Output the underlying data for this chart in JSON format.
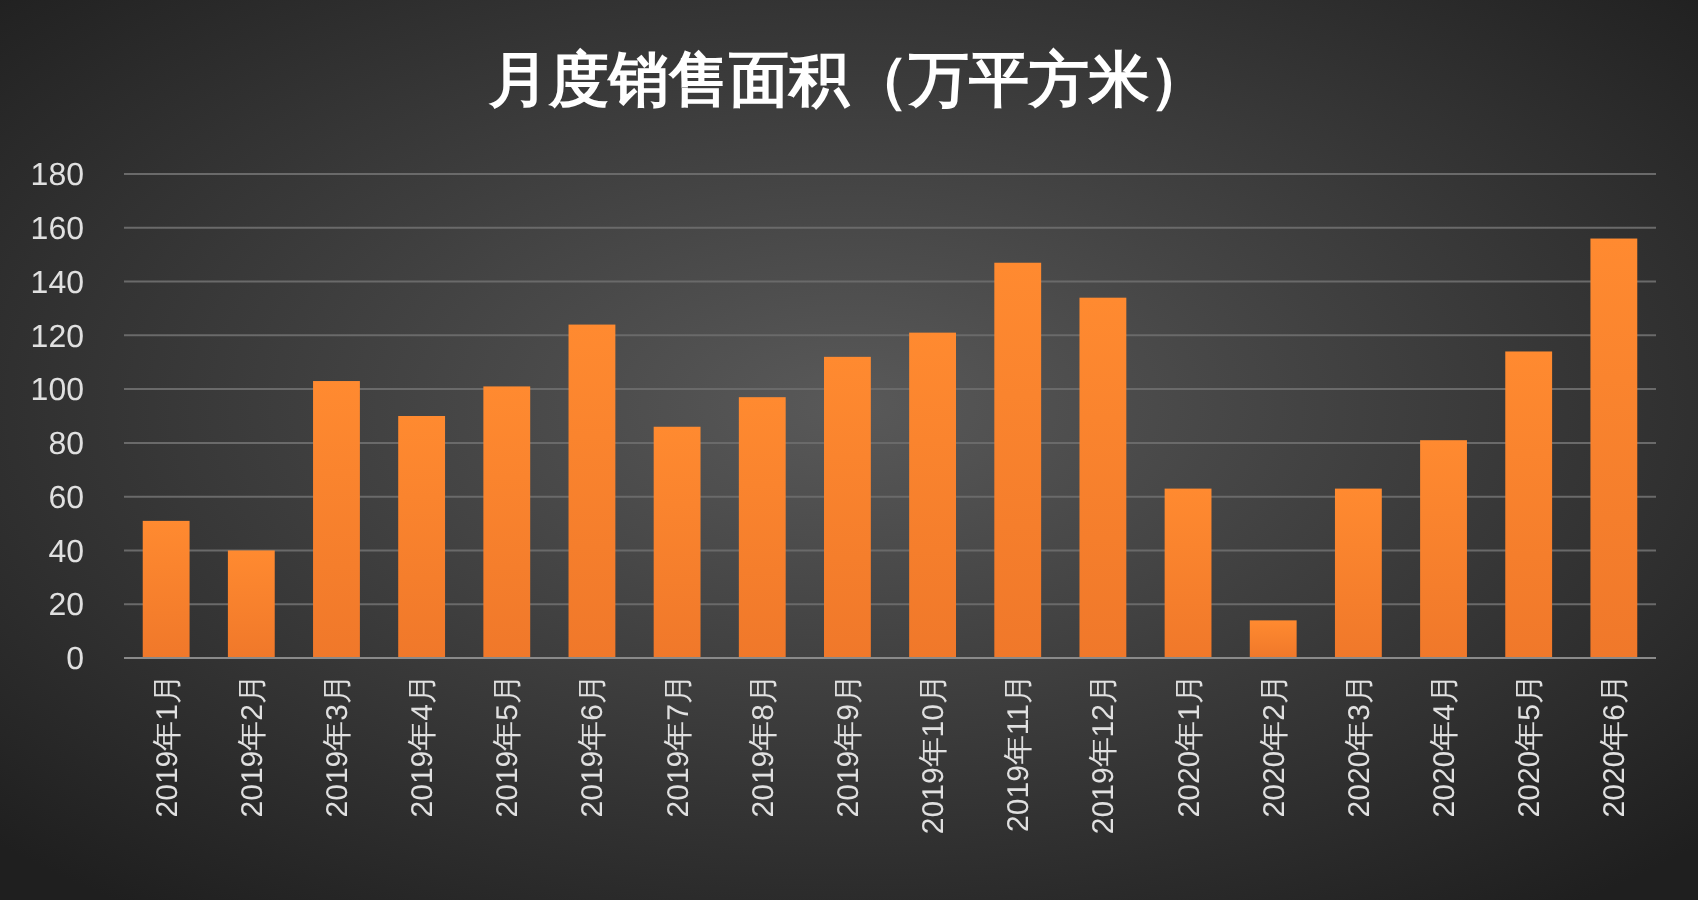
{
  "chart_data": {
    "type": "bar",
    "title": "月度销售面积（万平方米）",
    "categories": [
      "2019年1月",
      "2019年2月",
      "2019年3月",
      "2019年4月",
      "2019年5月",
      "2019年6月",
      "2019年7月",
      "2019年8月",
      "2019年9月",
      "2019年10月",
      "2019年11月",
      "2019年12月",
      "2020年1月",
      "2020年2月",
      "2020年3月",
      "2020年4月",
      "2020年5月",
      "2020年6月"
    ],
    "values": [
      51,
      40,
      103,
      90,
      101,
      124,
      86,
      97,
      112,
      121,
      147,
      134,
      63,
      14,
      63,
      81,
      114,
      156
    ],
    "color": "#f0782a",
    "ylim": [
      0,
      180
    ],
    "yticks": [
      0,
      20,
      40,
      60,
      80,
      100,
      120,
      140,
      160,
      180
    ],
    "grid": "y"
  }
}
